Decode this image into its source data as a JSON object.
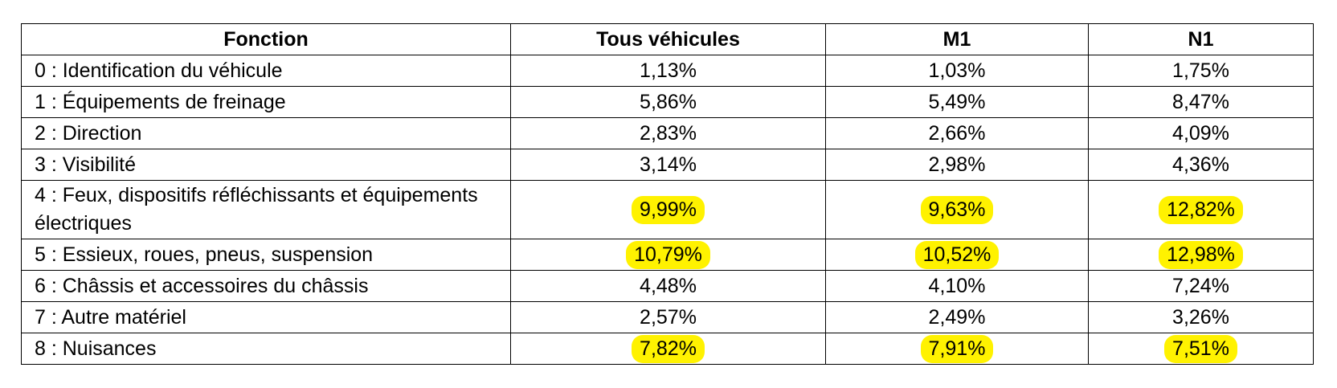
{
  "table": {
    "headers": [
      "Fonction",
      "Tous véhicules",
      "M1",
      "N1"
    ],
    "rows": [
      {
        "label": "0 : Identification du véhicule",
        "tous": "1,13%",
        "m1": "1,03%",
        "n1": "1,75%"
      },
      {
        "label": "1 : Équipements de freinage",
        "tous": "5,86%",
        "m1": "5,49%",
        "n1": "8,47%"
      },
      {
        "label": "2 : Direction",
        "tous": "2,83%",
        "m1": "2,66%",
        "n1": "4,09%"
      },
      {
        "label": "3 : Visibilité",
        "tous": "3,14%",
        "m1": "2,98%",
        "n1": "4,36%"
      },
      {
        "label": "4 : Feux, dispositifs réfléchissants et équipements électriques",
        "tous": "9,99%",
        "m1": "9,63%",
        "n1": "12,82%"
      },
      {
        "label": "5 : Essieux, roues, pneus, suspension",
        "tous": "10,79%",
        "m1": "10,52%",
        "n1": "12,98%"
      },
      {
        "label": "6 : Châssis et accessoires du châssis",
        "tous": "4,48%",
        "m1": "4,10%",
        "n1": "7,24%"
      },
      {
        "label": "7 : Autre matériel",
        "tous": "2,57%",
        "m1": "2,49%",
        "n1": "3,26%"
      },
      {
        "label": "8 : Nuisances",
        "tous": "7,82%",
        "m1": "7,91%",
        "n1": "7,51%"
      }
    ]
  },
  "colors": {
    "highlight": "#fff200",
    "border": "#000000",
    "text": "#000000"
  }
}
